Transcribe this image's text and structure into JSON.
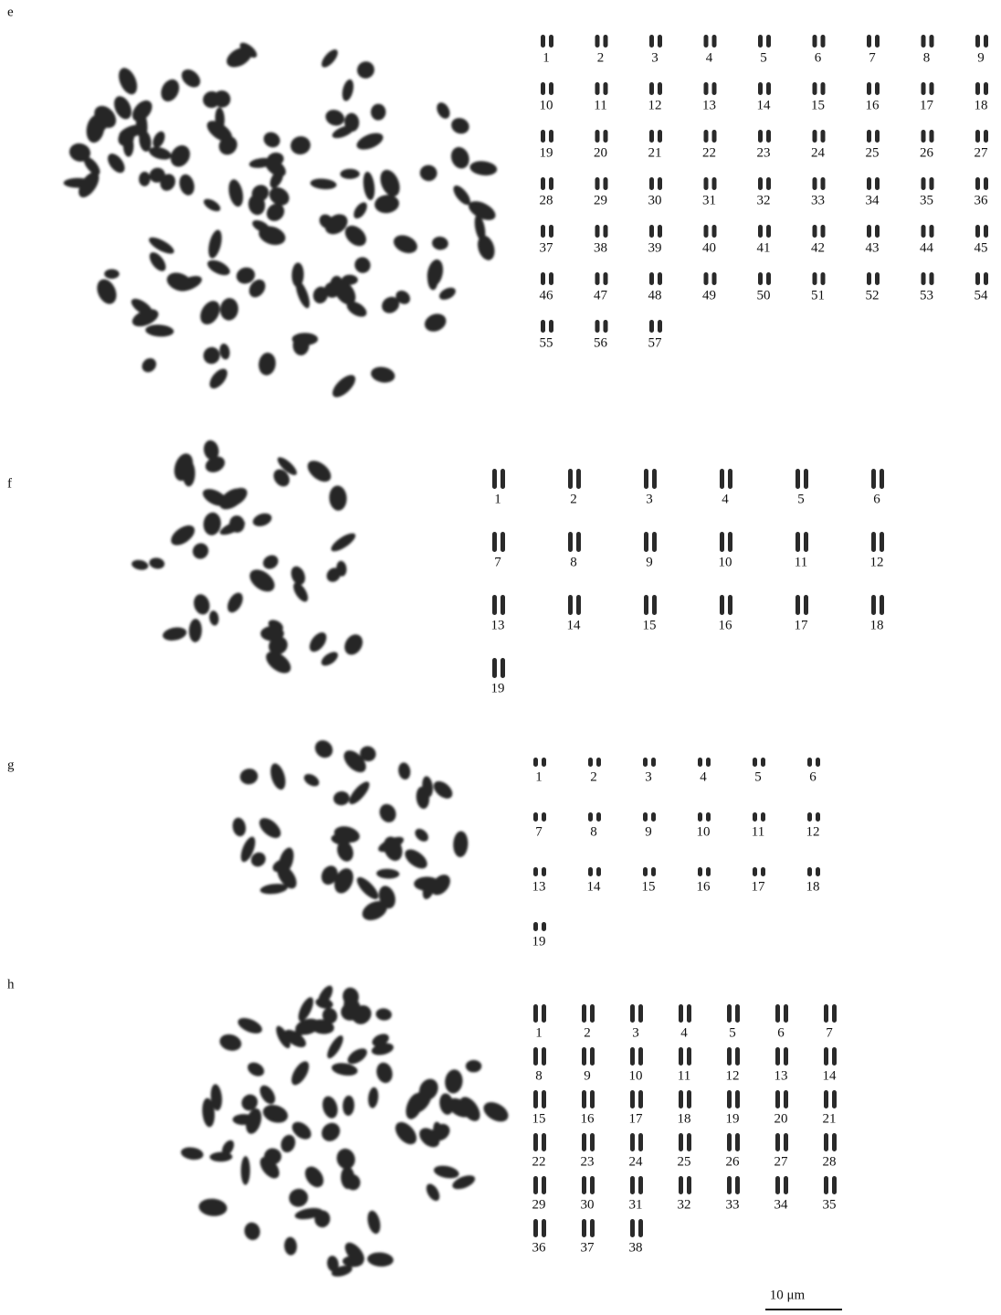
{
  "panels": [
    {
      "label": "e",
      "numbers": [
        "1",
        "2",
        "3",
        "4",
        "5",
        "6",
        "7",
        "8",
        "9",
        "10",
        "11",
        "12",
        "13",
        "14",
        "15",
        "16",
        "17",
        "18",
        "19",
        "20",
        "21",
        "22",
        "23",
        "24",
        "25",
        "26",
        "27",
        "28",
        "29",
        "30",
        "31",
        "32",
        "33",
        "34",
        "35",
        "36",
        "37",
        "38",
        "39",
        "40",
        "41",
        "42",
        "43",
        "44",
        "45",
        "46",
        "47",
        "48",
        "49",
        "50",
        "51",
        "52",
        "53",
        "54",
        "55",
        "56",
        "57"
      ]
    },
    {
      "label": "f",
      "numbers": [
        "1",
        "2",
        "3",
        "4",
        "5",
        "6",
        "7",
        "8",
        "9",
        "10",
        "11",
        "12",
        "13",
        "14",
        "15",
        "16",
        "17",
        "18",
        "19"
      ]
    },
    {
      "label": "g",
      "numbers": [
        "1",
        "2",
        "3",
        "4",
        "5",
        "6",
        "7",
        "8",
        "9",
        "10",
        "11",
        "12",
        "13",
        "14",
        "15",
        "16",
        "17",
        "18",
        "19"
      ]
    },
    {
      "label": "h",
      "numbers": [
        "1",
        "2",
        "3",
        "4",
        "5",
        "6",
        "7",
        "8",
        "9",
        "10",
        "11",
        "12",
        "13",
        "14",
        "15",
        "16",
        "17",
        "18",
        "19",
        "20",
        "21",
        "22",
        "23",
        "24",
        "25",
        "26",
        "27",
        "28",
        "29",
        "30",
        "31",
        "32",
        "33",
        "34",
        "35",
        "36",
        "37",
        "38"
      ]
    }
  ],
  "scale_bar": "10 μm"
}
